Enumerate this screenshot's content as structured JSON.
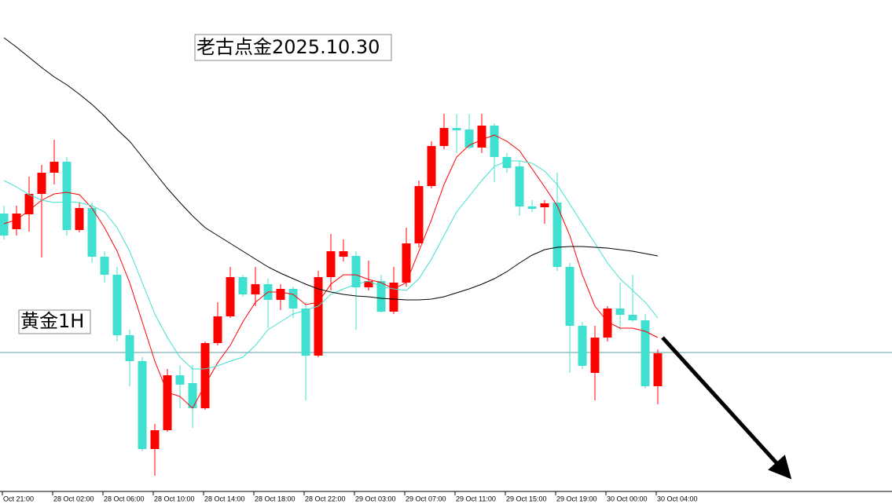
{
  "chart_data": {
    "type": "candlestick",
    "title": "老古点金2025.10.30",
    "subtitle": "黄金1H",
    "categories": [
      "Oct 21:00",
      null,
      null,
      null,
      "28 Oct 02:00",
      null,
      null,
      null,
      "28 Oct 06:00",
      null,
      null,
      null,
      "28 Oct 10:00",
      null,
      null,
      null,
      "28 Oct 14:00",
      null,
      null,
      null,
      "28 Oct 18:00",
      null,
      null,
      null,
      "28 Oct 22:00",
      null,
      null,
      null,
      "29 Oct 03:00",
      null,
      null,
      null,
      "29 Oct 07:00",
      null,
      null,
      null,
      "29 Oct 11:00",
      null,
      null,
      null,
      "29 Oct 15:00",
      null,
      null,
      null,
      "29 Oct 19:00",
      null,
      null,
      null,
      "30 Oct 00:00",
      null,
      null,
      null,
      "30 Oct 04:00"
    ],
    "open": [
      348,
      328,
      347,
      373,
      400,
      414,
      327,
      355,
      293,
      270,
      193,
      160,
      48,
      72,
      142,
      132,
      100,
      183,
      217,
      267,
      245,
      258,
      238,
      252,
      227,
      167,
      267,
      293,
      294,
      254,
      262,
      223,
      260,
      310,
      383,
      434,
      457,
      455,
      432,
      460,
      420,
      408,
      357,
      356,
      362,
      280,
      205,
      145,
      190,
      227,
      219,
      212,
      128
    ],
    "close": [
      320,
      348,
      373,
      400,
      414,
      327,
      355,
      293,
      270,
      193,
      160,
      48,
      72,
      142,
      130,
      100,
      183,
      217,
      267,
      245,
      258,
      238,
      252,
      227,
      167,
      267,
      300,
      300,
      254,
      262,
      223,
      260,
      310,
      383,
      434,
      457,
      454,
      432,
      460,
      420,
      406,
      357,
      354,
      361,
      280,
      205,
      154,
      190,
      227,
      219,
      212,
      128,
      170
    ],
    "high": [
      358,
      358,
      395,
      410,
      442,
      420,
      362,
      362,
      300,
      280,
      200,
      165,
      80,
      150,
      155,
      155,
      185,
      235,
      280,
      270,
      280,
      265,
      258,
      255,
      235,
      275,
      322,
      315,
      300,
      288,
      270,
      280,
      330,
      390,
      440,
      475,
      475,
      475,
      475,
      463,
      425,
      415,
      365,
      365,
      400,
      285,
      210,
      205,
      230,
      260,
      270,
      220,
      175
    ],
    "low": [
      315,
      320,
      325,
      292,
      385,
      320,
      324,
      285,
      260,
      185,
      128,
      45,
      14,
      70,
      100,
      75,
      98,
      180,
      215,
      242,
      230,
      202,
      225,
      215,
      110,
      165,
      250,
      287,
      200,
      250,
      222,
      220,
      255,
      305,
      380,
      430,
      425,
      430,
      425,
      388,
      400,
      345,
      350,
      335,
      275,
      145,
      150,
      110,
      185,
      200,
      210,
      125,
      105
    ],
    "up_color": "#ff0000",
    "down_color": "#40e0d0",
    "series": [
      {
        "color": "#ff0000",
        "values": [
          335,
          340,
          352,
          365,
          373,
          375,
          372,
          355,
          330,
          300,
          260,
          210,
          160,
          120,
          115,
          100,
          130,
          158,
          180,
          210,
          235,
          248,
          248,
          245,
          232,
          235,
          258,
          270,
          270,
          264,
          260,
          252,
          260,
          300,
          340,
          385,
          420,
          435,
          442,
          448,
          440,
          428,
          405,
          382,
          358,
          320,
          270,
          230,
          210,
          202,
          202,
          198,
          190
        ]
      },
      {
        "color": "#40e0d0",
        "values": [
          390,
          382,
          372,
          365,
          362,
          363,
          362,
          358,
          350,
          330,
          300,
          260,
          220,
          190,
          165,
          150,
          150,
          154,
          160,
          165,
          180,
          200,
          210,
          220,
          225,
          230,
          245,
          252,
          258,
          262,
          255,
          252,
          250,
          265,
          290,
          320,
          350,
          370,
          390,
          408,
          415,
          415,
          412,
          402,
          385,
          360,
          335,
          310,
          285,
          265,
          250,
          235,
          215
        ]
      },
      {
        "color": "#000000",
        "values": [
          572,
          560,
          547,
          534,
          522,
          512,
          500,
          487,
          472,
          455,
          440,
          420,
          400,
          380,
          362,
          345,
          330,
          320,
          310,
          300,
          290,
          280,
          272,
          265,
          258,
          252,
          248,
          245,
          243,
          242,
          240,
          239,
          238,
          238,
          239,
          242,
          247,
          252,
          258,
          265,
          274,
          285,
          295,
          302,
          305,
          306,
          306,
          305,
          304,
          302,
          300,
          297,
          294
        ]
      }
    ],
    "price_line": 171,
    "price_line_color": "#5f9ea0",
    "ylim": [
      0,
      620
    ]
  }
}
